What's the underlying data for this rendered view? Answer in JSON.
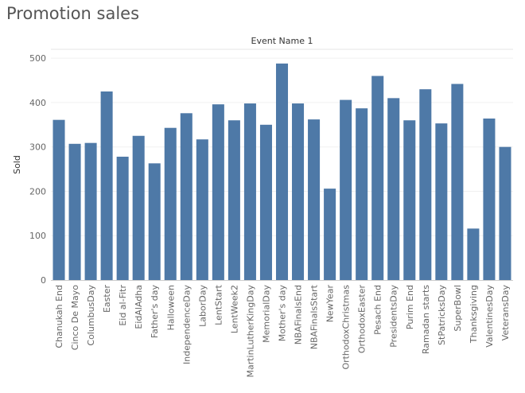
{
  "page": {
    "title": "Promotion sales"
  },
  "chart_data": {
    "type": "bar",
    "column_header": "Event Name 1",
    "ylabel": "Sold",
    "xlabel": "",
    "ylim": [
      0,
      520
    ],
    "yticks": [
      0,
      100,
      200,
      300,
      400,
      500
    ],
    "grid": true,
    "bar_color": "#4e79a7",
    "categories": [
      "Chanukah End",
      "Cinco De Mayo",
      "ColumbusDay",
      "Easter",
      "Eid al-Fitr",
      "EidAlAdha",
      "Father's day",
      "Halloween",
      "IndependenceDay",
      "LaborDay",
      "LentStart",
      "LentWeek2",
      "MartinLutherKingDay",
      "MemorialDay",
      "Mother's day",
      "NBAFinalsEnd",
      "NBAFinalsStart",
      "NewYear",
      "OrthodoxChristmas",
      "OrthodoxEaster",
      "Pesach End",
      "PresidentsDay",
      "Purim End",
      "Ramadan starts",
      "StPatricksDay",
      "SuperBowl",
      "Thanksgiving",
      "ValentinesDay",
      "VeteransDay"
    ],
    "values": [
      361,
      307,
      309,
      425,
      278,
      325,
      263,
      343,
      376,
      317,
      396,
      360,
      398,
      350,
      488,
      398,
      362,
      206,
      406,
      387,
      460,
      410,
      360,
      430,
      353,
      442,
      116,
      364,
      300
    ]
  }
}
